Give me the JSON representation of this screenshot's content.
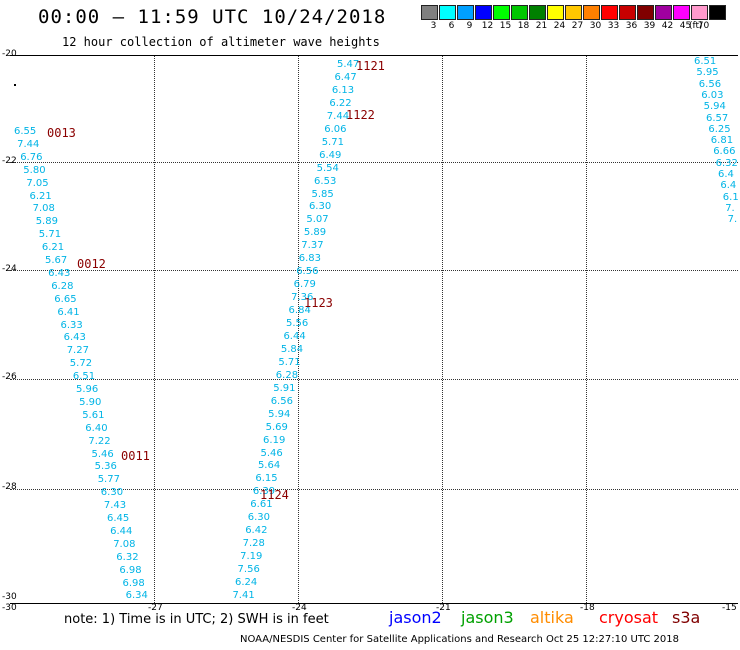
{
  "header": {
    "title": "00:00 – 11:59 UTC 10/24/2018",
    "subtitle": "12 hour collection of altimeter wave heights"
  },
  "legend": {
    "units": "(ft)",
    "bins": [
      {
        "label": "3",
        "color": "#808080"
      },
      {
        "label": "6",
        "color": "#00ffff"
      },
      {
        "label": "9",
        "color": "#00a0ff"
      },
      {
        "label": "12",
        "color": "#0000ff"
      },
      {
        "label": "15",
        "color": "#00ff00"
      },
      {
        "label": "18",
        "color": "#00c800"
      },
      {
        "label": "21",
        "color": "#008000"
      },
      {
        "label": "24",
        "color": "#ffff00"
      },
      {
        "label": "27",
        "color": "#ffc800"
      },
      {
        "label": "30",
        "color": "#ff8000"
      },
      {
        "label": "33",
        "color": "#ff0000"
      },
      {
        "label": "36",
        "color": "#c80000"
      },
      {
        "label": "39",
        "color": "#800000"
      },
      {
        "label": "42",
        "color": "#a000a0"
      },
      {
        "label": "45",
        "color": "#ff00ff"
      },
      {
        "label": "70",
        "color": "#ff99cc"
      },
      {
        "label": "",
        "color": "#000000"
      }
    ]
  },
  "axes": {
    "y_ticks": [
      "-20",
      "-22",
      "-24",
      "-26",
      "-28",
      "-30"
    ],
    "x_ticks": [
      "-30",
      "-27",
      "-24",
      "-21",
      "-18",
      "-15"
    ]
  },
  "tracks": [
    {
      "values": [
        "6.55",
        "7.44",
        "6.76",
        "5.80",
        "7.05",
        "6.21",
        "7.08",
        "5.89",
        "5.71",
        "6.21",
        "5.67",
        "6.43",
        "6.28",
        "6.65",
        "6.41",
        "6.33",
        "6.43",
        "7.27",
        "5.72",
        "6.51",
        "5.96",
        "5.90",
        "5.61",
        "6.40",
        "7.22",
        "5.46",
        "5.36",
        "5.77",
        "6.30",
        "7.43",
        "6.45",
        "6.44",
        "7.08",
        "6.32",
        "6.98",
        "6.98",
        "6.34"
      ],
      "times": [
        "0013",
        "0012",
        "0011"
      ]
    },
    {
      "values": [
        "5.47",
        "6.47",
        "6.13",
        "6.22",
        "7.44",
        "6.06",
        "5.71",
        "6.49",
        "5.54",
        "6.53",
        "5.85",
        "6.30",
        "5.07",
        "5.89",
        "7.37",
        "6.83",
        "6.56",
        "6.79",
        "7.36",
        "6.84",
        "5.56",
        "6.44",
        "5.84",
        "5.71",
        "6.28",
        "5.91",
        "6.56",
        "5.94",
        "5.69",
        "6.19",
        "5.46",
        "5.64",
        "6.15",
        "6.39",
        "6.61",
        "6.30",
        "6.42",
        "7.28",
        "7.19",
        "7.56",
        "6.24",
        "7.41"
      ],
      "times": [
        "1121",
        "1122",
        "1123",
        "1124"
      ]
    },
    {
      "values": [
        "6.51",
        "5.95",
        "6.56",
        "6.03",
        "5.94",
        "6.57",
        "6.25",
        "6.81",
        "6.66",
        "6.32",
        "6.4",
        "6.4",
        "6.1",
        "7.",
        "7."
      ],
      "times": []
    }
  ],
  "footer": {
    "note": "note:  1) Time is in UTC;  2) SWH is in feet",
    "satellites": [
      {
        "name": "jason2",
        "color": "#0000ff"
      },
      {
        "name": "jason3",
        "color": "#00a000"
      },
      {
        "name": "altika",
        "color": "#ff8c00"
      },
      {
        "name": "cryosat",
        "color": "#ff0000"
      },
      {
        "name": "s3a",
        "color": "#800000"
      }
    ],
    "credit": "NOAA/NESDIS Center for Satellite Applications and Research     Oct 25 12:27:10 UTC 2018"
  },
  "colors": {
    "wave_value": "#00b4e6",
    "time_label": "#8b0000"
  }
}
